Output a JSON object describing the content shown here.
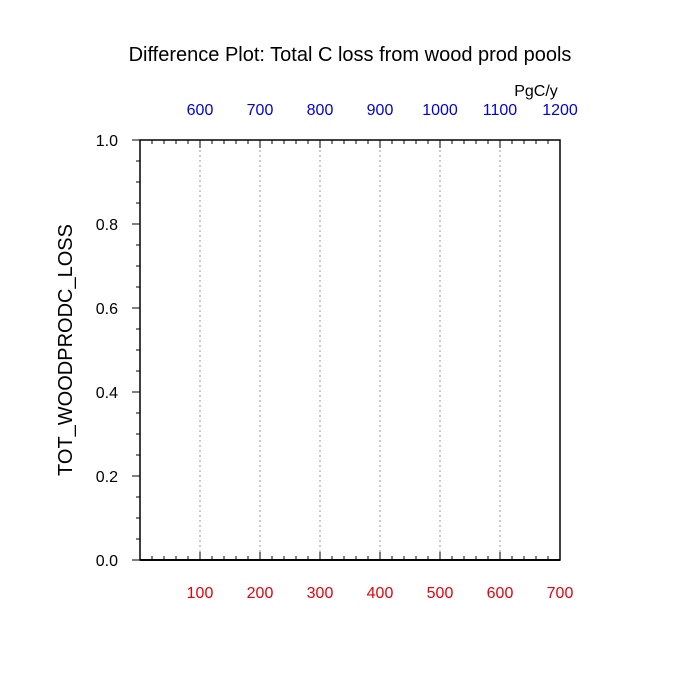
{
  "chart_data": {
    "type": "line",
    "title": "Difference Plot: Total C loss from wood prod pools",
    "ylabel": "TOT_WOODPRODC_LOSS",
    "units_label": "PgC/y",
    "bottom_axis": {
      "range": [
        0,
        700
      ],
      "ticks": [
        100,
        200,
        300,
        400,
        500,
        600,
        700
      ],
      "tick_labels": [
        "100",
        "200",
        "300",
        "400",
        "500",
        "600",
        "700"
      ],
      "color": "#e8000b"
    },
    "top_axis": {
      "range": [
        500,
        1200
      ],
      "ticks": [
        600,
        700,
        800,
        900,
        1000,
        1100,
        1200
      ],
      "tick_labels": [
        "600",
        "700",
        "800",
        "900",
        "1000",
        "1100",
        "1200"
      ],
      "color": "#0000e0"
    },
    "left_axis": {
      "range": [
        0.0,
        1.0
      ],
      "ticks": [
        0.0,
        0.2,
        0.4,
        0.6,
        0.8,
        1.0
      ],
      "tick_labels": [
        "0.0",
        "0.2",
        "0.4",
        "0.6",
        "0.8",
        "1.0"
      ]
    },
    "grid": {
      "vertical": true,
      "horizontal": false,
      "style": "dotted"
    },
    "series": []
  }
}
